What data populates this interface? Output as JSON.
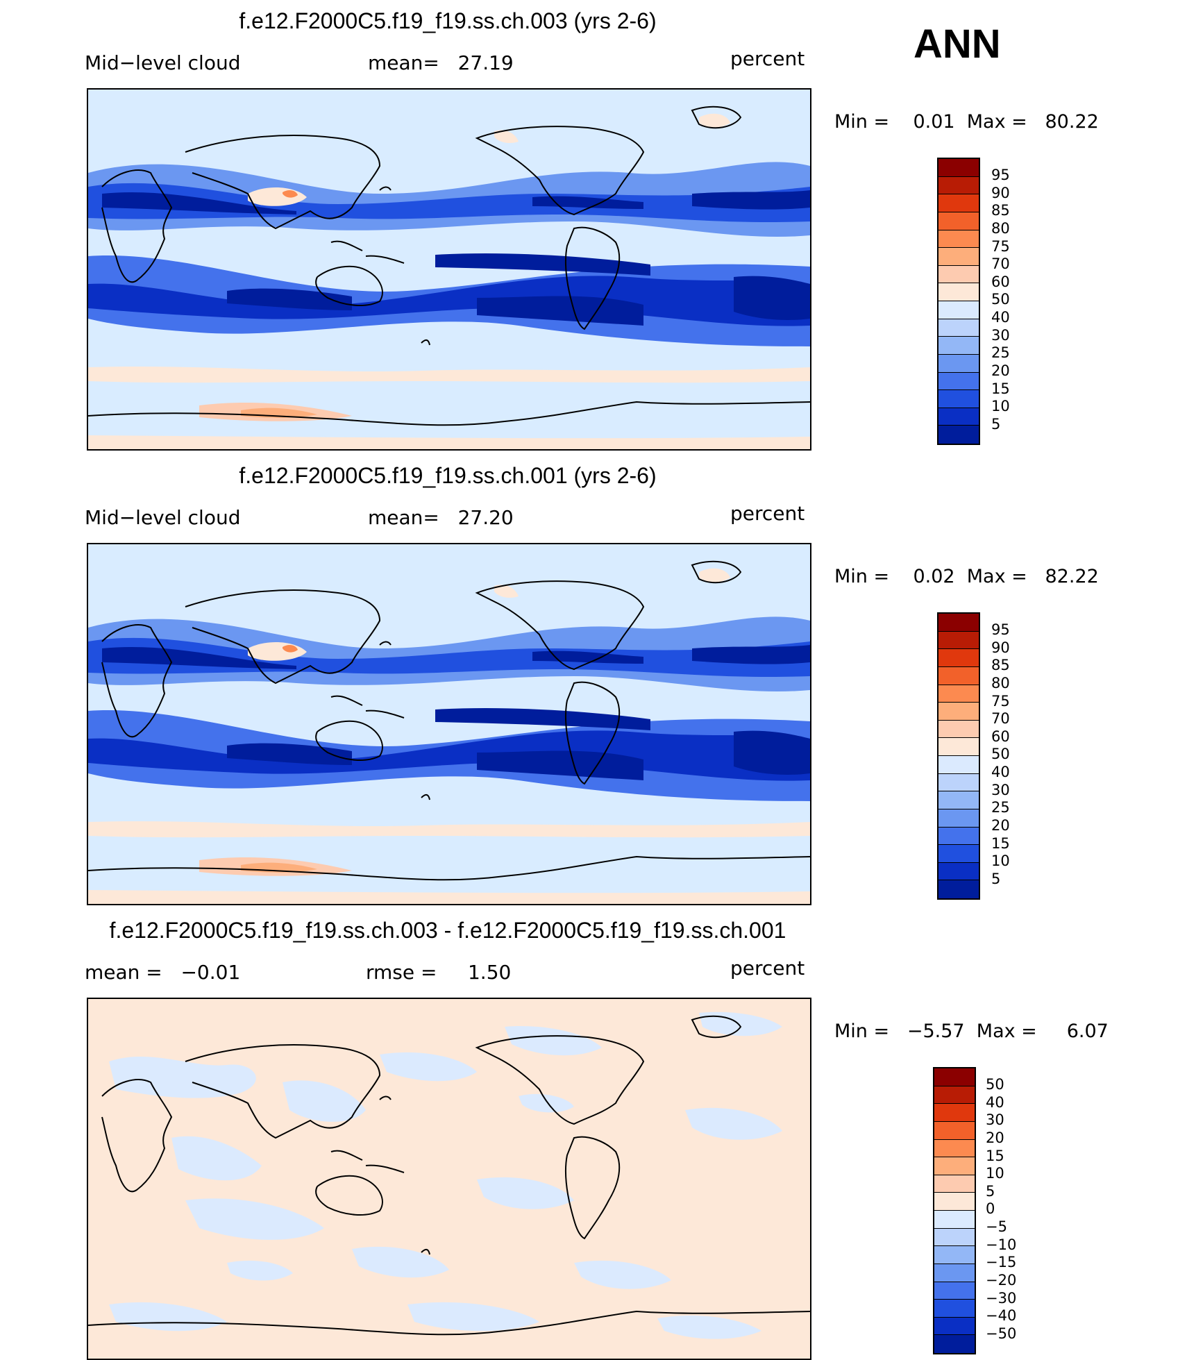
{
  "season": "ANN",
  "panels": [
    {
      "title": "f.e12.F2000C5.f19_f19.ss.ch.003 (yrs 2-6)",
      "left_label": "Mid−level cloud",
      "mid_label": "mean=   27.19",
      "units": "percent",
      "minmax": "Min =    0.01  Max =   80.22",
      "map_type": "cloud"
    },
    {
      "title": "f.e12.F2000C5.f19_f19.ss.ch.001 (yrs 2-6)",
      "left_label": "Mid−level cloud",
      "mid_label": "mean=   27.20",
      "units": "percent",
      "minmax": "Min =    0.02  Max =   82.22",
      "map_type": "cloud"
    },
    {
      "title": "f.e12.F2000C5.f19_f19.ss.ch.003 - f.e12.F2000C5.f19_f19.ss.ch.001",
      "left_label": "mean =   −0.01",
      "mid_label": "rmse =     1.50",
      "units": "percent",
      "minmax": "Min =   −5.57  Max =     6.07",
      "map_type": "diff"
    }
  ],
  "colorbar_abs": {
    "labels": [
      "95",
      "90",
      "85",
      "80",
      "75",
      "70",
      "60",
      "50",
      "40",
      "30",
      "25",
      "20",
      "15",
      "10",
      "5"
    ],
    "colors": [
      "#8b0000",
      "#b81c05",
      "#e0380d",
      "#f2612a",
      "#fc8a50",
      "#fdae7b",
      "#fdcbb0",
      "#fde8d8",
      "#dbeafe",
      "#bcd3fb",
      "#93b7f6",
      "#6b97f1",
      "#4472ec",
      "#2050df",
      "#0a2fc4",
      "#001d9c"
    ]
  },
  "colorbar_diff": {
    "labels": [
      "50",
      "40",
      "30",
      "20",
      "15",
      "10",
      "5",
      "0",
      "−5",
      "−10",
      "−15",
      "−20",
      "−30",
      "−40",
      "−50"
    ],
    "colors": [
      "#8b0000",
      "#b81c05",
      "#e0380d",
      "#f2612a",
      "#fc8a50",
      "#fdae7b",
      "#fdcbb0",
      "#fde8d8",
      "#dbeafe",
      "#bcd3fb",
      "#93b7f6",
      "#6b97f1",
      "#4472ec",
      "#2050df",
      "#0a2fc4",
      "#001d9c"
    ]
  }
}
